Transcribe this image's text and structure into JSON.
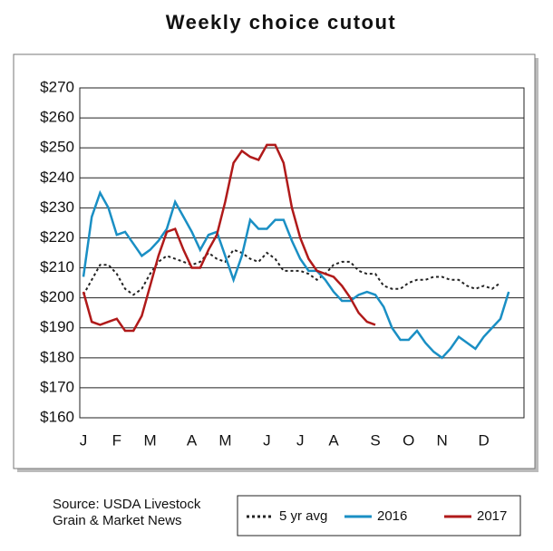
{
  "chart_data": {
    "type": "line",
    "title": "Weekly choice cutout",
    "source": "Source: USDA Livestock Grain & Market News",
    "categories": [
      "J",
      null,
      null,
      null,
      "F",
      null,
      null,
      null,
      "M",
      null,
      null,
      null,
      null,
      "A",
      null,
      null,
      null,
      "M",
      null,
      null,
      null,
      null,
      "J",
      null,
      null,
      null,
      "J",
      null,
      null,
      null,
      "A",
      null,
      null,
      null,
      null,
      "S",
      null,
      null,
      null,
      "O",
      null,
      null,
      null,
      "N",
      null,
      null,
      null,
      null,
      "D",
      null,
      null,
      null
    ],
    "ylim": [
      160,
      270
    ],
    "yticks": [
      {
        "value": 160,
        "label": "$160"
      },
      {
        "value": 170,
        "label": "$170"
      },
      {
        "value": 180,
        "label": "$180"
      },
      {
        "value": 190,
        "label": "$190"
      },
      {
        "value": 200,
        "label": "$200"
      },
      {
        "value": 210,
        "label": "$210"
      },
      {
        "value": 220,
        "label": "$220"
      },
      {
        "value": 230,
        "label": "$230"
      },
      {
        "value": 240,
        "label": "$240"
      },
      {
        "value": 250,
        "label": "$250"
      },
      {
        "value": 260,
        "label": "$260"
      },
      {
        "value": 270,
        "label": "$270"
      }
    ],
    "grid": true,
    "series": [
      {
        "name": "5 yr avg",
        "color": "#222222",
        "dash": true,
        "values": [
          201,
          206,
          211,
          211,
          208,
          203,
          201,
          203,
          208,
          212,
          214,
          213,
          212,
          211,
          212,
          215,
          213,
          212,
          216,
          215,
          213,
          212,
          215,
          213,
          209,
          209,
          209,
          208,
          206,
          208,
          211,
          212,
          212,
          209,
          208,
          208,
          204,
          203,
          203,
          205,
          206,
          206,
          207,
          207,
          206,
          206,
          204,
          203,
          204,
          203,
          205,
          null
        ]
      },
      {
        "name": "2016",
        "color": "#1a8fc4",
        "values": [
          207,
          227,
          235,
          230,
          221,
          222,
          218,
          214,
          216,
          219,
          223,
          232,
          227,
          222,
          216,
          221,
          222,
          214,
          206,
          214,
          226,
          223,
          223,
          226,
          226,
          219,
          213,
          209,
          209,
          206,
          202,
          199,
          199,
          201,
          202,
          201,
          197,
          190,
          186,
          186,
          189,
          185,
          182,
          180,
          183,
          187,
          185,
          183,
          187,
          190,
          193,
          202
        ]
      },
      {
        "name": "2017",
        "color": "#b01a1a",
        "values": [
          202,
          192,
          191,
          192,
          193,
          189,
          189,
          194,
          204,
          214,
          222,
          223,
          216,
          210,
          210,
          216,
          221,
          232,
          245,
          249,
          247,
          246,
          251,
          251,
          245,
          230,
          220,
          213,
          209,
          208,
          207,
          204,
          200,
          195,
          192,
          191,
          null,
          null,
          null,
          null,
          null,
          null,
          null,
          null,
          null,
          null,
          null,
          null,
          null,
          null,
          null,
          null
        ]
      }
    ]
  }
}
